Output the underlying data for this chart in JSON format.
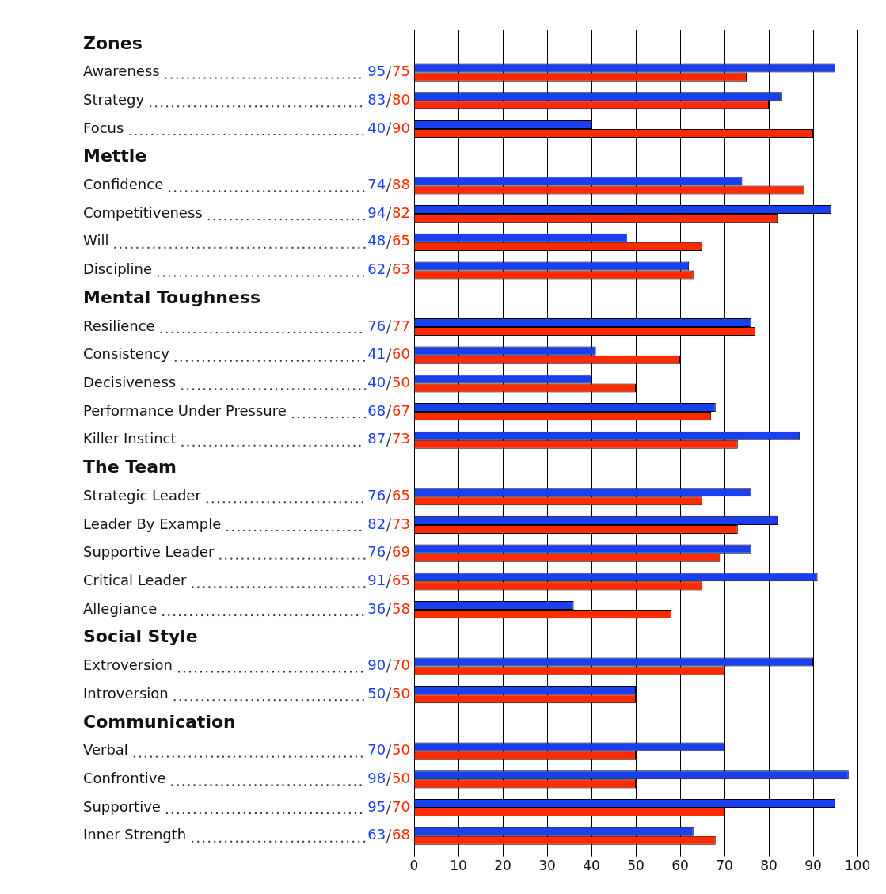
{
  "chart_data": {
    "type": "bar",
    "orientation": "horizontal",
    "categories": [
      "Zones",
      "Awareness",
      "Strategy",
      "Focus",
      "Mettle",
      "Confidence",
      "Competitiveness",
      "Will",
      "Discipline",
      "Mental Toughness",
      "Resilience",
      "Consistency",
      "Decisiveness",
      "Performance Under Pressure",
      "Killer Instinct",
      "The Team",
      "Strategic Leader",
      "Leader By Example",
      "Supportive Leader",
      "Critical Leader",
      "Allegiance",
      "Social Style",
      "Extroversion",
      "Introversion",
      "Communication",
      "Verbal",
      "Confrontive",
      "Supportive",
      "Inner Strength"
    ],
    "series": [
      {
        "color": "#1a3ff0",
        "values": [
          null,
          95,
          83,
          40,
          null,
          74,
          94,
          48,
          62,
          null,
          76,
          41,
          40,
          68,
          87,
          null,
          76,
          82,
          76,
          91,
          36,
          null,
          90,
          50,
          null,
          70,
          98,
          95,
          63
        ]
      },
      {
        "color": "#ff2a00",
        "values": [
          null,
          75,
          80,
          90,
          null,
          88,
          82,
          65,
          63,
          null,
          77,
          60,
          50,
          67,
          73,
          null,
          65,
          73,
          69,
          65,
          58,
          null,
          70,
          50,
          null,
          50,
          50,
          70,
          68
        ]
      }
    ],
    "xlim": [
      0,
      100
    ],
    "xticks": [
      0,
      10,
      20,
      30,
      40,
      50,
      60,
      70,
      80,
      90,
      100
    ],
    "grid": "x",
    "data_labels": true,
    "legend": false
  }
}
